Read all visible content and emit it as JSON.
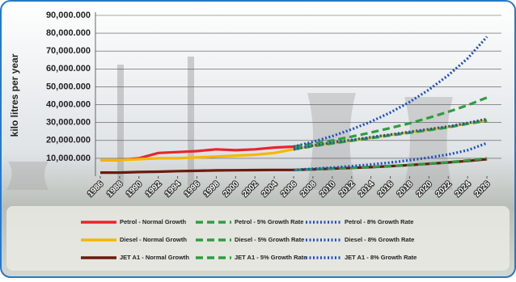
{
  "chart_data": {
    "type": "line",
    "y_label": "kilo litres per year",
    "x": [
      1986,
      1988,
      1990,
      1992,
      1994,
      1996,
      1998,
      2000,
      2002,
      2004,
      2006,
      2008,
      2010,
      2012,
      2014,
      2016,
      2018,
      2020,
      2022,
      2024,
      2026
    ],
    "xlim": [
      1985.5,
      2027.5
    ],
    "xticks": [
      1986,
      1988,
      1990,
      1992,
      1994,
      1996,
      1998,
      2000,
      2002,
      2004,
      2006,
      2008,
      2010,
      2012,
      2014,
      2016,
      2018,
      2020,
      2022,
      2024,
      2026
    ],
    "ylim": [
      0,
      90000000
    ],
    "yticks": [
      {
        "value": 10000000,
        "label": "10,000.000"
      },
      {
        "value": 20000000,
        "label": "20,000.000"
      },
      {
        "value": 30000000,
        "label": "30,000.000"
      },
      {
        "value": 40000000,
        "label": "40,000.000"
      },
      {
        "value": 50000000,
        "label": "50,000.000"
      },
      {
        "value": 60000000,
        "label": "60,000.000"
      },
      {
        "value": 70000000,
        "label": "70,000.000"
      },
      {
        "value": 80000000,
        "label": "80,000.000"
      },
      {
        "value": 90000000,
        "label": "90,000.000"
      }
    ],
    "grid": true,
    "series": [
      {
        "name": "Petrol - Normal Growth",
        "color": "#e8262a",
        "style": "solid",
        "values": [
          9000000,
          9000000,
          10000000,
          13000000,
          13500000,
          14000000,
          15000000,
          14500000,
          15000000,
          16000000,
          16500000,
          null,
          null,
          null,
          null,
          null,
          null,
          null,
          null,
          null,
          null
        ]
      },
      {
        "name": "Petrol - 5% Growth Rate",
        "color": "#2e9e3e",
        "style": "dashed",
        "values": [
          null,
          null,
          null,
          null,
          null,
          null,
          null,
          null,
          null,
          null,
          16500000,
          18200000,
          20000000,
          22100000,
          24400000,
          26900000,
          29600000,
          32700000,
          36000000,
          39700000,
          44000000
        ]
      },
      {
        "name": "Petrol - 8% Growth Rate",
        "color": "#1f4fbf",
        "style": "dotted",
        "values": [
          null,
          null,
          null,
          null,
          null,
          null,
          null,
          null,
          null,
          null,
          16500000,
          19200000,
          22400000,
          26200000,
          30500000,
          35600000,
          41500000,
          48400000,
          56500000,
          65900000,
          78000000
        ]
      },
      {
        "name": "Diesel - Normal Growth",
        "color": "#f5b800",
        "style": "solid",
        "values": [
          9000000,
          9000000,
          9500000,
          10000000,
          10000000,
          10500000,
          11000000,
          11500000,
          12000000,
          13000000,
          15000000,
          17000000,
          18500000,
          20000000,
          21500000,
          23000000,
          24500000,
          26000000,
          27500000,
          29500000,
          31500000
        ]
      },
      {
        "name": "Diesel - 5% Growth Rate",
        "color": "#2e9e3e",
        "style": "dashed",
        "values": [
          null,
          null,
          null,
          null,
          null,
          null,
          null,
          null,
          null,
          null,
          15000000,
          16800000,
          18300000,
          19800000,
          21300000,
          22800000,
          24300000,
          25800000,
          27300000,
          29300000,
          31000000
        ]
      },
      {
        "name": "Diesel - 8% Growth Rate",
        "color": "#1f4fbf",
        "style": "dotted",
        "values": [
          null,
          null,
          null,
          null,
          null,
          null,
          null,
          null,
          null,
          null,
          15000000,
          17200000,
          18800000,
          20300000,
          21800000,
          23300000,
          24800000,
          26300000,
          27800000,
          29800000,
          32000000
        ]
      },
      {
        "name": "JET A1 - Normal Growth",
        "color": "#6b1a10",
        "style": "solid",
        "values": [
          2000000,
          2000000,
          2300000,
          2500000,
          2800000,
          3000000,
          3200000,
          3300000,
          3400000,
          3500000,
          3500000,
          3800000,
          4200000,
          4600000,
          5000000,
          5600000,
          6200000,
          6900000,
          7700000,
          8500000,
          9500000
        ]
      },
      {
        "name": "JET A1 - 5% Growth Rate",
        "color": "#2e9e3e",
        "style": "dashed",
        "values": [
          null,
          null,
          null,
          null,
          null,
          null,
          null,
          null,
          null,
          null,
          3500000,
          3900000,
          4300000,
          4700000,
          5200000,
          5700000,
          6300000,
          7000000,
          7800000,
          8800000,
          10000000
        ]
      },
      {
        "name": "JET A1 - 8% Growth Rate",
        "color": "#1f4fbf",
        "style": "dotted",
        "values": [
          null,
          null,
          null,
          null,
          null,
          null,
          null,
          null,
          null,
          null,
          3500000,
          4100000,
          4800000,
          5600000,
          6500000,
          7600000,
          8900000,
          10400000,
          12100000,
          14500000,
          18500000
        ]
      }
    ]
  }
}
